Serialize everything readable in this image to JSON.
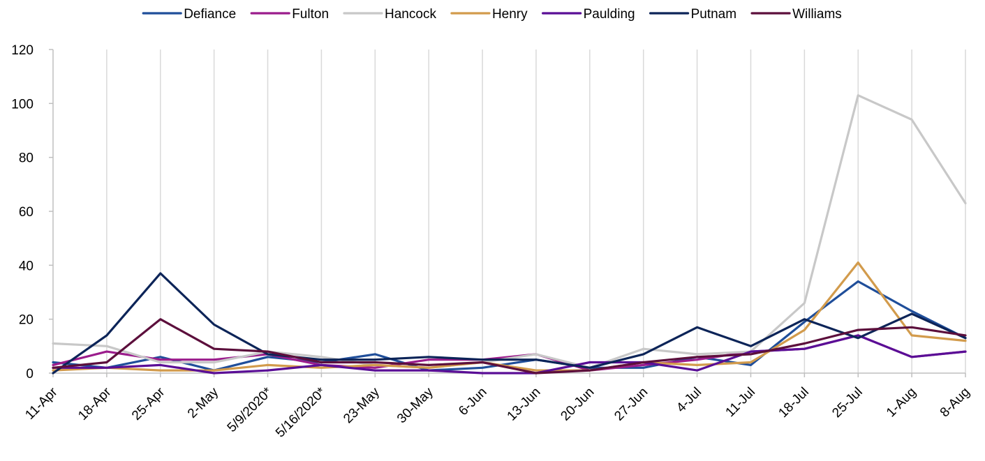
{
  "chart_data": {
    "type": "line",
    "title": "",
    "xlabel": "",
    "ylabel": "",
    "ylim": [
      0,
      120
    ],
    "yticks": [
      0,
      20,
      40,
      60,
      80,
      100,
      120
    ],
    "grid": "vertical",
    "legend_position": "top",
    "categories": [
      "11-Apr",
      "18-Apr",
      "25-Apr",
      "2-May",
      "5/9/2020*",
      "5/16/2020*",
      "23-May",
      "30-May",
      "6-Jun",
      "13-Jun",
      "20-Jun",
      "27-Jun",
      "4-Jul",
      "11-Jul",
      "18-Jul",
      "25-Jul",
      "1-Aug",
      "8-Aug"
    ],
    "series": [
      {
        "name": "Defiance",
        "color": "#1f4e9a",
        "values": [
          4,
          2,
          6,
          1,
          6,
          4,
          7,
          1,
          2,
          5,
          2,
          2,
          6,
          3,
          19,
          34,
          23,
          13
        ]
      },
      {
        "name": "Fulton",
        "color": "#9b1c8c",
        "values": [
          3,
          8,
          5,
          5,
          7,
          3,
          2,
          5,
          5,
          7,
          1,
          3,
          5,
          8,
          9,
          14,
          6,
          8
        ]
      },
      {
        "name": "Hancock",
        "color": "#c8c8c8",
        "values": [
          11,
          10,
          4,
          4,
          8,
          6,
          3,
          2,
          4,
          7,
          2,
          9,
          7,
          8,
          26,
          103,
          94,
          63
        ]
      },
      {
        "name": "Henry",
        "color": "#d29b4c",
        "values": [
          1,
          2,
          1,
          1,
          3,
          2,
          3,
          2,
          4,
          1,
          1,
          4,
          3,
          4,
          16,
          41,
          14,
          12
        ]
      },
      {
        "name": "Paulding",
        "color": "#5a0e96",
        "values": [
          2,
          2,
          3,
          0,
          1,
          3,
          1,
          1,
          0,
          0,
          4,
          4,
          1,
          8,
          9,
          14,
          6,
          8
        ]
      },
      {
        "name": "Putnam",
        "color": "#0c2458",
        "values": [
          0,
          14,
          37,
          18,
          7,
          5,
          5,
          6,
          5,
          5,
          2,
          7,
          17,
          10,
          20,
          13,
          22,
          13
        ]
      },
      {
        "name": "Williams",
        "color": "#5c0f3c",
        "values": [
          2,
          4,
          20,
          9,
          8,
          4,
          4,
          3,
          4,
          0,
          1,
          4,
          6,
          7,
          11,
          16,
          17,
          14
        ]
      }
    ]
  }
}
